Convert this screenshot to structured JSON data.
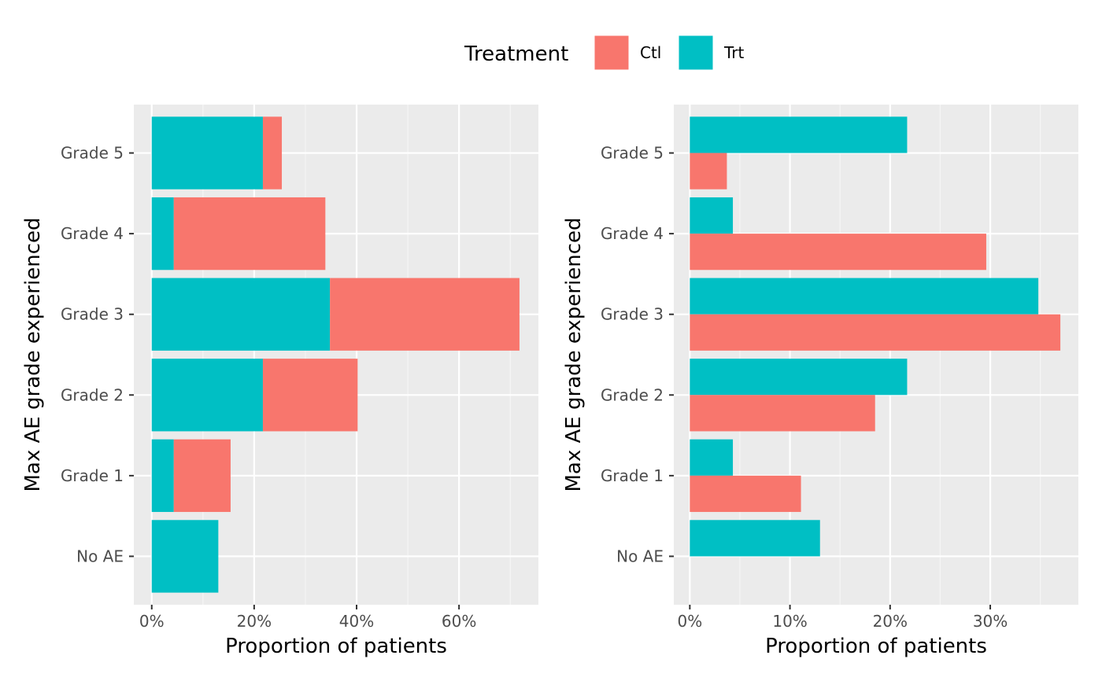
{
  "legend": {
    "title": "Treatment",
    "items": [
      {
        "label": "Ctl",
        "color": "#F8766D"
      },
      {
        "label": "Trt",
        "color": "#00BFC4"
      }
    ],
    "position": "top"
  },
  "chart_data": [
    {
      "type": "bar",
      "orientation": "horizontal",
      "bar_mode": "stacked",
      "categories": [
        "No AE",
        "Grade 1",
        "Grade 2",
        "Grade 3",
        "Grade 4",
        "Grade 5"
      ],
      "series": [
        {
          "name": "Trt",
          "color": "#00BFC4",
          "values": [
            13.0,
            4.3,
            21.7,
            34.8,
            4.3,
            21.7
          ]
        },
        {
          "name": "Ctl",
          "color": "#F8766D",
          "values": [
            0,
            11.1,
            18.5,
            37.0,
            29.6,
            3.7
          ]
        }
      ],
      "xlabel": "Proportion of patients",
      "ylabel": "Max AE grade experienced",
      "xlim": [
        -3.5,
        75.5
      ],
      "xticks": [
        0,
        20,
        40,
        60
      ],
      "xtick_labels": [
        "0%",
        "20%",
        "40%",
        "60%"
      ],
      "grid": true
    },
    {
      "type": "bar",
      "orientation": "horizontal",
      "bar_mode": "dodged",
      "categories": [
        "No AE",
        "Grade 1",
        "Grade 2",
        "Grade 3",
        "Grade 4",
        "Grade 5"
      ],
      "series": [
        {
          "name": "Trt",
          "color": "#00BFC4",
          "values": [
            13.0,
            4.3,
            21.7,
            34.8,
            4.3,
            21.7
          ]
        },
        {
          "name": "Ctl",
          "color": "#F8766D",
          "values": [
            0,
            11.1,
            18.5,
            37.0,
            29.6,
            3.7
          ]
        }
      ],
      "xlabel": "Proportion of patients",
      "ylabel": "Max AE grade experienced",
      "xlim": [
        -1.6,
        38.8
      ],
      "xticks": [
        0,
        10,
        20,
        30
      ],
      "xtick_labels": [
        "0%",
        "10%",
        "20%",
        "30%"
      ],
      "grid": true
    }
  ]
}
